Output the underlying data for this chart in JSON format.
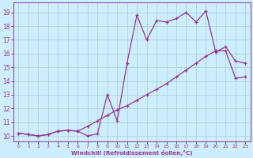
{
  "xlabel": "Windchill (Refroidissement éolien,°C)",
  "bg_color": "#cceeff",
  "line_color": "#993399",
  "grid_color": "#aacccc",
  "x_ticks": [
    0,
    1,
    2,
    3,
    4,
    5,
    6,
    7,
    8,
    9,
    10,
    11,
    12,
    13,
    14,
    15,
    16,
    17,
    18,
    19,
    20,
    21,
    22,
    23
  ],
  "y_ticks": [
    10,
    11,
    12,
    13,
    14,
    15,
    16,
    17,
    18,
    19
  ],
  "ylim": [
    9.6,
    19.7
  ],
  "xlim": [
    -0.5,
    23.5
  ],
  "curve1_x": [
    0,
    1,
    2,
    3,
    4,
    5,
    6,
    7,
    8,
    9,
    10,
    11,
    12,
    13,
    14,
    15,
    16,
    17,
    18,
    19,
    20,
    21,
    22,
    23
  ],
  "curve1_y": [
    10.2,
    10.1,
    10.0,
    10.1,
    10.35,
    10.4,
    10.35,
    10.0,
    10.15,
    13.0,
    11.1,
    15.3,
    18.8,
    17.0,
    18.4,
    18.3,
    18.55,
    19.0,
    18.3,
    19.1,
    16.1,
    16.5,
    15.45,
    15.3
  ],
  "curve2_x": [
    0,
    1,
    2,
    3,
    4,
    5,
    6,
    7,
    8,
    9,
    10,
    11,
    12,
    13,
    14,
    15,
    16,
    17,
    18,
    19,
    20,
    21,
    22,
    23
  ],
  "curve2_y": [
    10.2,
    10.1,
    10.0,
    10.1,
    10.35,
    10.4,
    10.35,
    10.7,
    11.1,
    11.5,
    11.9,
    12.2,
    12.6,
    13.0,
    13.4,
    13.8,
    14.3,
    14.8,
    15.3,
    15.8,
    16.2,
    16.2,
    14.2,
    14.3
  ]
}
